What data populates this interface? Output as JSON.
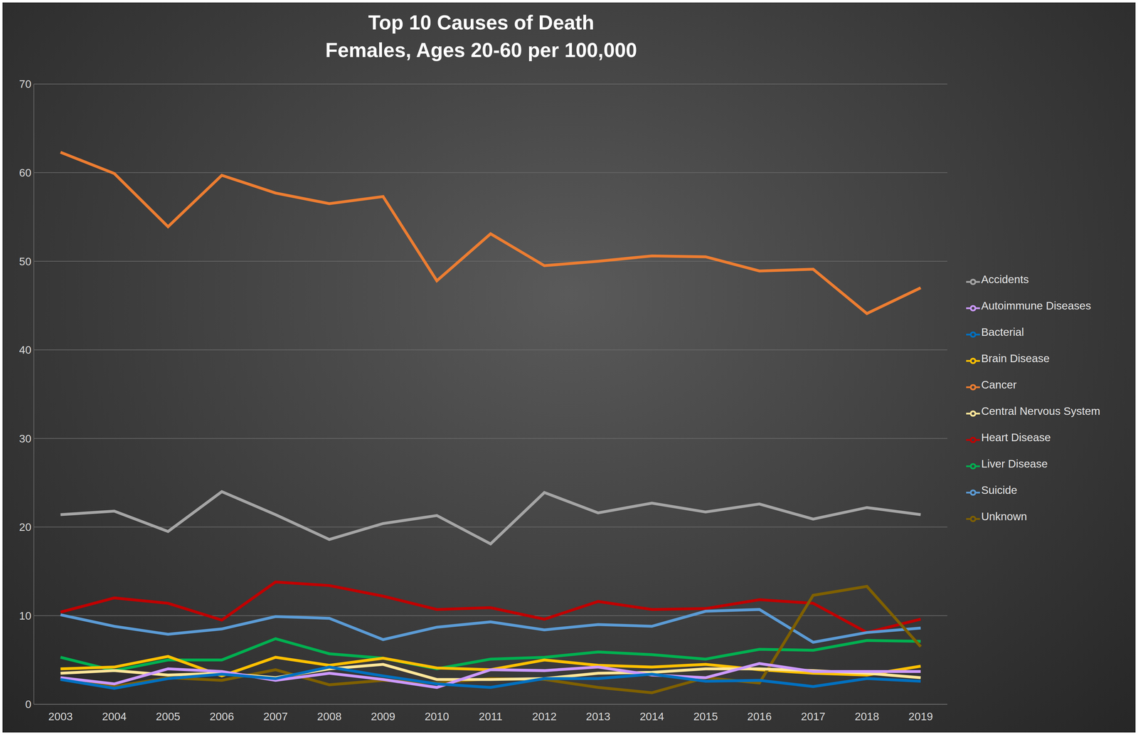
{
  "chart_data": {
    "type": "line",
    "title": "Top 10 Causes of Death",
    "subtitle": "Females, Ages 20-60 per 100,000",
    "x": [
      2003,
      2004,
      2005,
      2006,
      2007,
      2008,
      2009,
      2010,
      2011,
      2012,
      2013,
      2014,
      2015,
      2016,
      2017,
      2018,
      2019
    ],
    "ylim": [
      0,
      70
    ],
    "yticks": [
      0,
      10,
      20,
      30,
      40,
      50,
      60,
      70
    ],
    "grid": true,
    "legend": "right",
    "series": [
      {
        "name": "Cancer",
        "color": "#ed7d31",
        "values": [
          62.3,
          59.9,
          53.9,
          59.7,
          57.7,
          56.5,
          57.3,
          47.8,
          53.1,
          49.5,
          50.0,
          50.6,
          50.5,
          48.9,
          49.1,
          44.1,
          47.0
        ]
      },
      {
        "name": "Accidents",
        "color": "#a5a5a5",
        "values": [
          21.4,
          21.8,
          19.5,
          24.0,
          21.4,
          18.6,
          20.4,
          21.3,
          18.1,
          23.9,
          21.6,
          22.7,
          21.7,
          22.6,
          20.9,
          22.2,
          21.4
        ]
      },
      {
        "name": "Heart Disease",
        "color": "#c00000",
        "values": [
          10.4,
          12.0,
          11.4,
          9.5,
          13.8,
          13.4,
          12.2,
          10.7,
          10.9,
          9.6,
          11.6,
          10.7,
          10.8,
          11.8,
          11.4,
          8.1,
          9.6
        ]
      },
      {
        "name": "Suicide",
        "color": "#5b9bd5",
        "values": [
          10.1,
          8.8,
          7.9,
          8.5,
          9.9,
          9.7,
          7.3,
          8.7,
          9.3,
          8.4,
          9.0,
          8.8,
          10.5,
          10.7,
          7.0,
          8.1,
          8.6
        ]
      },
      {
        "name": "Liver Disease",
        "color": "#00b050",
        "values": [
          5.3,
          3.8,
          5.0,
          5.0,
          7.4,
          5.7,
          5.2,
          4.0,
          5.1,
          5.3,
          5.9,
          5.6,
          5.1,
          6.2,
          6.1,
          7.2,
          7.1
        ]
      },
      {
        "name": "Brain Disease",
        "color": "#ffc000",
        "values": [
          4.0,
          4.2,
          5.4,
          3.2,
          5.3,
          4.4,
          5.2,
          4.1,
          3.9,
          5.0,
          4.4,
          4.2,
          4.5,
          3.9,
          3.5,
          3.3,
          4.3
        ]
      },
      {
        "name": "Unknown",
        "color": "#7f6000",
        "values": [
          2.8,
          2.0,
          3.0,
          2.7,
          3.9,
          2.2,
          2.7,
          2.4,
          2.9,
          2.8,
          1.9,
          1.3,
          3.0,
          2.4,
          12.3,
          13.3,
          6.5
        ]
      },
      {
        "name": "Central Nervous System",
        "color": "#ffe699",
        "values": [
          3.5,
          3.8,
          3.3,
          3.5,
          3.0,
          4.0,
          4.5,
          2.8,
          2.8,
          2.9,
          3.5,
          3.6,
          4.0,
          4.0,
          3.8,
          3.5,
          3.0
        ]
      },
      {
        "name": "Autoimmune Diseases",
        "color": "#cc99ff",
        "values": [
          3.0,
          2.3,
          4.0,
          3.7,
          2.7,
          3.5,
          2.8,
          1.9,
          3.9,
          3.8,
          4.2,
          3.3,
          3.0,
          4.6,
          3.7,
          3.7,
          3.7
        ]
      },
      {
        "name": "Bacterial",
        "color": "#0070c0",
        "values": [
          2.8,
          1.8,
          2.9,
          3.4,
          2.9,
          4.2,
          3.2,
          2.3,
          1.9,
          2.9,
          2.9,
          3.4,
          2.6,
          2.7,
          2.0,
          2.9,
          2.6
        ]
      }
    ]
  }
}
